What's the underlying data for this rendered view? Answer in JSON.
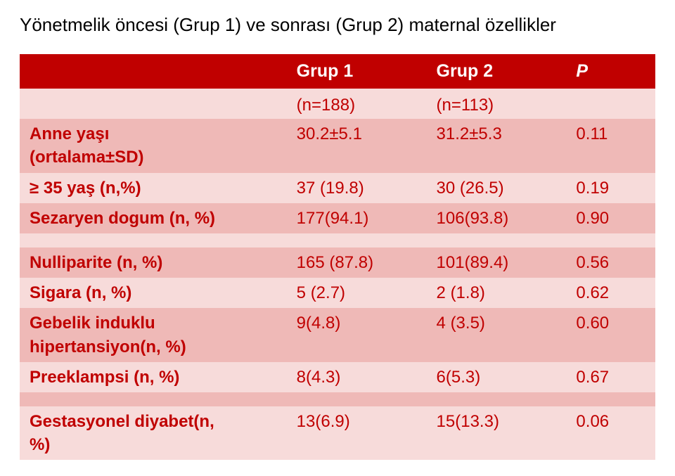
{
  "title": "Yönetmelik öncesi (Grup 1) ve sonrası (Grup 2) maternal özellikler",
  "colors": {
    "accent": "#c00000",
    "band_light": "#f7dbda",
    "band_dark": "#efb9b7",
    "text_on_accent": "#ffffff",
    "background": "#ffffff"
  },
  "table": {
    "header": {
      "blank": "",
      "group1": "Grup 1",
      "group2": "Grup 2",
      "p": "P"
    },
    "subheader": {
      "blank": "",
      "n1": "(n=188)",
      "n2": "(n=113)",
      "p": ""
    },
    "rows": [
      {
        "label_top": "Anne yaşı",
        "label_bottom": "(ortalama±SD)",
        "g1": "30.2±5.1",
        "g2": "31.2±5.3",
        "p": "0.11",
        "twoLine": true,
        "band": "dark"
      },
      {
        "label": "≥ 35 yaş (n,%)",
        "g1": "37 (19.8)",
        "g2": "30 (26.5)",
        "p": "0.19",
        "band": "light"
      },
      {
        "label": "Sezaryen dogum (n, %)",
        "g1": "177(94.1)",
        "g2": "106(93.8)",
        "p": "0.90",
        "band": "dark"
      },
      {
        "label": "",
        "g1": "",
        "g2": "",
        "p": "",
        "band": "light",
        "spacer": true
      },
      {
        "label": "Nulliparite (n, %)",
        "g1": "165 (87.8)",
        "g2": "101(89.4)",
        "p": "0.56",
        "band": "dark"
      },
      {
        "label": "Sigara (n, %)",
        "g1": "5 (2.7)",
        "g2": "2 (1.8)",
        "p": "0.62",
        "band": "light"
      },
      {
        "label_top": "Gebelik induklu",
        "label_bottom": "hipertansiyon(n, %)",
        "g1": "9(4.8)",
        "g2": "4 (3.5)",
        "p": "0.60",
        "twoLine": true,
        "band": "dark"
      },
      {
        "label": "Preeklampsi (n, %)",
        "g1": "8(4.3)",
        "g2": "6(5.3)",
        "p": "0.67",
        "band": "light"
      },
      {
        "label": "",
        "g1": "",
        "g2": "",
        "p": "",
        "band": "dark",
        "spacer": true
      },
      {
        "label_top": "Gestasyonel diyabet(n,",
        "label_bottom": "%)",
        "g1": "13(6.9)",
        "g2": "15(13.3)",
        "p": "0.06",
        "twoLine": true,
        "band": "light"
      }
    ]
  }
}
